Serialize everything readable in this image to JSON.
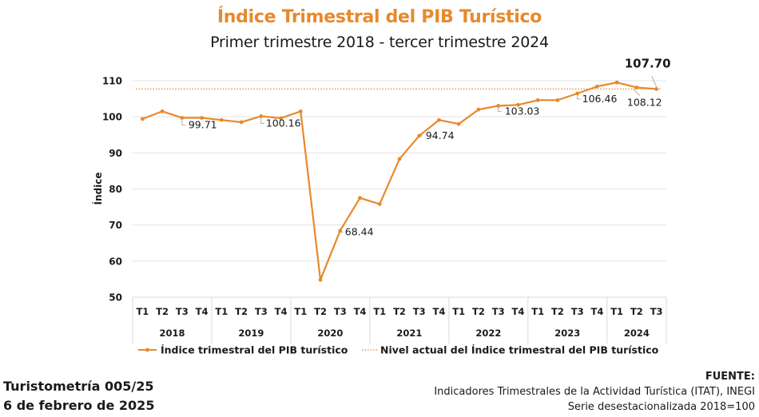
{
  "header": {
    "title": "Índice Trimestral del PIB Turístico",
    "subtitle": "Primer trimestre 2018 - tercer trimestre 2024"
  },
  "chart_data": {
    "type": "line",
    "title": "Índice Trimestral del PIB Turístico",
    "subtitle": "Primer trimestre 2018 - tercer trimestre 2024",
    "xlabel": "",
    "ylabel": "Índice",
    "ylim": [
      50,
      110
    ],
    "yticks": [
      "50",
      "60",
      "70",
      "80",
      "90",
      "100",
      "110"
    ],
    "grid": true,
    "years": [
      "2018",
      "2019",
      "2020",
      "2021",
      "2022",
      "2023",
      "2024"
    ],
    "categories": [
      "T1",
      "T2",
      "T3",
      "T4",
      "T1",
      "T2",
      "T3",
      "T4",
      "T1",
      "T2",
      "T3",
      "T4",
      "T1",
      "T2",
      "T3",
      "T4",
      "T1",
      "T2",
      "T3",
      "T4",
      "T1",
      "T2",
      "T3",
      "T4",
      "T1",
      "T2",
      "T3"
    ],
    "series": [
      {
        "name": "Índice trimestral del PIB turístico",
        "color": "#e8892b",
        "values": [
          99.4,
          101.5,
          99.71,
          99.7,
          99.1,
          98.5,
          100.16,
          99.6,
          101.5,
          54.8,
          68.44,
          77.5,
          75.8,
          88.3,
          94.74,
          99.1,
          98.0,
          102.0,
          103.03,
          103.3,
          104.6,
          104.6,
          106.46,
          108.4,
          109.5,
          108.12,
          107.7
        ]
      },
      {
        "name": "Nivel actual del Índice trimestral del PIB turístico",
        "color": "#e8892b",
        "style": "dotted",
        "value": 107.7
      }
    ],
    "annotations": [
      {
        "index": 2,
        "label": "99.71"
      },
      {
        "index": 6,
        "label": "100.16"
      },
      {
        "index": 10,
        "label": "68.44"
      },
      {
        "index": 14,
        "label": "94.74"
      },
      {
        "index": 18,
        "label": "103.03"
      },
      {
        "index": 22,
        "label": "106.46"
      },
      {
        "index": 25,
        "label": "108.12"
      },
      {
        "index": 26,
        "label": "107.70",
        "bold": true
      }
    ],
    "legend": "bottom"
  },
  "footer": {
    "left_line1": "Turistometría 005/25",
    "left_line2": "6 de febrero de 2025",
    "source_label": "FUENTE:",
    "source_line1": "Indicadores Trimestrales de la Actividad Turística (ITAT), INEGI",
    "source_line2": "Serie desestacionalizada 2018=100"
  }
}
